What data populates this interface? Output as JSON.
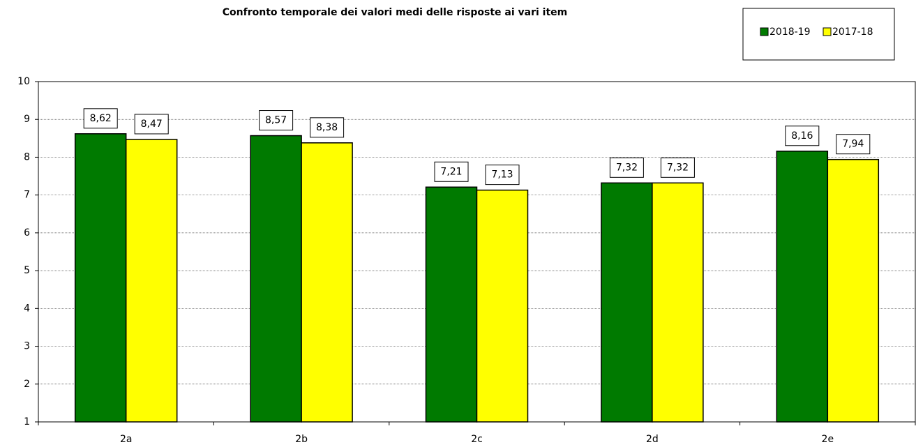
{
  "chart_data": {
    "type": "bar",
    "title": "Confronto temporale dei valori medi delle risposte ai vari item",
    "categories": [
      "2a",
      "2b",
      "2c",
      "2d",
      "2e"
    ],
    "series": [
      {
        "name": "2018-19",
        "color": "#007a00",
        "values": [
          8.62,
          8.57,
          7.21,
          7.32,
          8.16
        ],
        "value_labels": [
          "8,62",
          "8,57",
          "7,21",
          "7,32",
          "8,16"
        ]
      },
      {
        "name": "2017-18",
        "color": "#ffff00",
        "values": [
          8.47,
          8.38,
          7.13,
          7.32,
          7.94
        ],
        "value_labels": [
          "8,47",
          "8,38",
          "7,13",
          "7,32",
          "7,94"
        ]
      }
    ],
    "ylim": [
      1,
      10
    ],
    "yticks": [
      1,
      2,
      3,
      4,
      5,
      6,
      7,
      8,
      9,
      10
    ],
    "grid": true,
    "legend": "top-right"
  }
}
